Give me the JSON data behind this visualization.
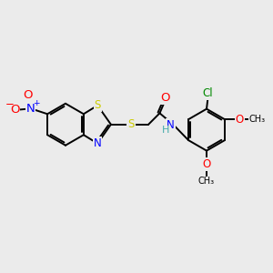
{
  "fig_bg": "#ebebeb",
  "bond_color": "#000000",
  "bond_width": 1.4,
  "atom_colors": {
    "S": "#cccc00",
    "N": "#0000ff",
    "O": "#ff0000",
    "Cl": "#008800",
    "C": "#000000",
    "H": "#44aaaa"
  },
  "font_size": 8.5,
  "xlim": [
    0,
    10
  ],
  "ylim": [
    0,
    10
  ]
}
